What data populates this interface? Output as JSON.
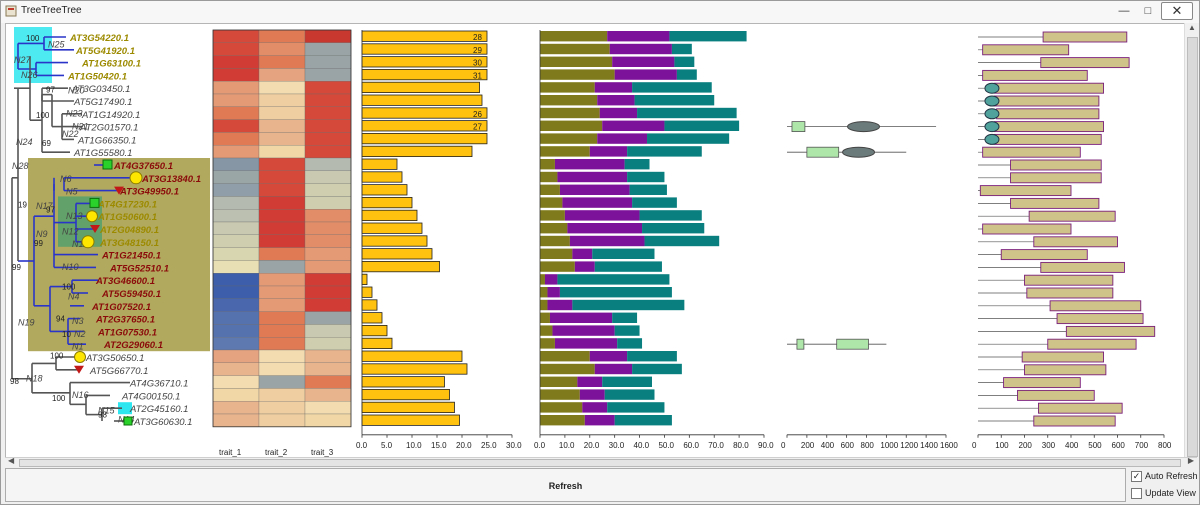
{
  "window": {
    "title": "TreeTreeTree",
    "minimize": "—",
    "maximize": "□",
    "close": "✕"
  },
  "colors": {
    "cyan": "#2ee6f0",
    "olive_clade": "#a8a04c",
    "green_clade": "#5aa06a",
    "blue_branch": "#2a34c8",
    "olive_label": "#9c8a00",
    "dark_red_label": "#8b0b0b",
    "grey_label": "#444444",
    "bar_gold": "#ffc20f",
    "stack_olive": "#7f7a1c",
    "stack_purple": "#7d129a",
    "stack_teal": "#0a7f80",
    "box_green": "#aee6a9",
    "box_teal_oval": "#4fa39c",
    "box_tan": "#cfc38a"
  },
  "tree": {
    "taxa": [
      {
        "name": "AT3G54220.1",
        "color": "olive"
      },
      {
        "name": "AT5G41920.1",
        "color": "olive"
      },
      {
        "name": "AT1G63100.1",
        "color": "olive"
      },
      {
        "name": "AT1G50420.1",
        "color": "olive"
      },
      {
        "name": "AT3G03450.1",
        "color": "grey"
      },
      {
        "name": "AT5G17490.1",
        "color": "grey"
      },
      {
        "name": "AT1G14920.1",
        "color": "grey"
      },
      {
        "name": "AT2G01570.1",
        "color": "grey"
      },
      {
        "name": "AT1G66350.1",
        "color": "grey"
      },
      {
        "name": "AT1G55580.1",
        "color": "grey"
      },
      {
        "name": "AT4G37650.1",
        "color": "darkred"
      },
      {
        "name": "AT3G13840.1",
        "color": "darkred"
      },
      {
        "name": "AT3G49950.1",
        "color": "darkred"
      },
      {
        "name": "AT4G17230.1",
        "color": "olive"
      },
      {
        "name": "AT1G50600.1",
        "color": "olive"
      },
      {
        "name": "AT2G04890.1",
        "color": "olive"
      },
      {
        "name": "AT3G48150.1",
        "color": "olive"
      },
      {
        "name": "AT1G21450.1",
        "color": "darkred"
      },
      {
        "name": "AT5G52510.1",
        "color": "darkred"
      },
      {
        "name": "AT3G46600.1",
        "color": "darkred"
      },
      {
        "name": "AT5G59450.1",
        "color": "darkred"
      },
      {
        "name": "AT1G07520.1",
        "color": "darkred"
      },
      {
        "name": "AT2G37650.1",
        "color": "darkred"
      },
      {
        "name": "AT1G07530.1",
        "color": "darkred"
      },
      {
        "name": "AT2G29060.1",
        "color": "darkred"
      },
      {
        "name": "AT3G50650.1",
        "color": "grey"
      },
      {
        "name": "AT5G66770.1",
        "color": "grey"
      },
      {
        "name": "AT4G36710.1",
        "color": "grey"
      },
      {
        "name": "AT4G00150.1",
        "color": "grey"
      },
      {
        "name": "AT2G45160.1",
        "color": "grey"
      },
      {
        "name": "AT3G60630.1",
        "color": "grey"
      }
    ],
    "nodes": [
      "N25",
      "N27",
      "N26",
      "N20",
      "N23",
      "N21",
      "N22",
      "N24",
      "N28",
      "N6",
      "N5",
      "N17",
      "N13",
      "N12",
      "N11",
      "N9",
      "N10",
      "N19",
      "N4",
      "N3",
      "N2",
      "N1",
      "N18",
      "N16",
      "N15",
      "N14"
    ],
    "bootstrap": [
      "100",
      "97",
      "100",
      "69",
      "19",
      "97",
      "99",
      "99",
      "100",
      "94",
      "10",
      "100",
      "98",
      "100",
      "98"
    ]
  },
  "heatmap": {
    "columns": [
      "trait_1",
      "trait_2",
      "trait_3"
    ],
    "rows": [
      [
        "#d5493a",
        "#e07a55",
        "#c8382f"
      ],
      [
        "#d5493a",
        "#e38d68",
        "#9aa3a6"
      ],
      [
        "#d13c34",
        "#e07a55",
        "#9aa3a6"
      ],
      [
        "#d13c34",
        "#e6a37f",
        "#9aa3a6"
      ],
      [
        "#e59a76",
        "#f2dcb0",
        "#d5493a"
      ],
      [
        "#e59a76",
        "#efcfa1",
        "#d5493a"
      ],
      [
        "#e07a55",
        "#efcfa1",
        "#d5493a"
      ],
      [
        "#d5493a",
        "#e8b48d",
        "#d5493a"
      ],
      [
        "#e07a55",
        "#e8b48d",
        "#d5493a"
      ],
      [
        "#e59a76",
        "#f1d6a6",
        "#d5493a"
      ],
      [
        "#8696a4",
        "#d5493a",
        "#b4bab0"
      ],
      [
        "#9aa5a6",
        "#d5493a",
        "#c8c9b0"
      ],
      [
        "#8f9ea8",
        "#d5493a",
        "#cfcfb0"
      ],
      [
        "#b4bab0",
        "#d13c34",
        "#cfcfb0"
      ],
      [
        "#bcc0b0",
        "#d13c34",
        "#e38d68"
      ],
      [
        "#c8c9b0",
        "#d13c34",
        "#e38d68"
      ],
      [
        "#cfcfb0",
        "#d13c34",
        "#e38d68"
      ],
      [
        "#d7d6b0",
        "#e07a55",
        "#e59a76"
      ],
      [
        "#e8dfb4",
        "#9aa3a6",
        "#e59a76"
      ],
      [
        "#3c5eab",
        "#e59a76",
        "#d13c34"
      ],
      [
        "#3c5eab",
        "#e59a76",
        "#d13c34"
      ],
      [
        "#4a66ad",
        "#e59a76",
        "#d13c34"
      ],
      [
        "#5571ae",
        "#e07a55",
        "#9aa3a6"
      ],
      [
        "#5571ae",
        "#e07a55",
        "#c8c9b0"
      ],
      [
        "#5e78b0",
        "#e07a55",
        "#cfcfb0"
      ],
      [
        "#e6a37f",
        "#f2dcb0",
        "#e8b48d"
      ],
      [
        "#e8b48d",
        "#f2dcb0",
        "#e8b48d"
      ],
      [
        "#f2dcb0",
        "#9aa3a6",
        "#e07a55"
      ],
      [
        "#f1d6a6",
        "#efcfa1",
        "#e8b48d"
      ],
      [
        "#e8b48d",
        "#efcfa1",
        "#f2dcb0"
      ],
      [
        "#e8b48d",
        "#efcfa1",
        "#f1d6a6"
      ]
    ]
  },
  "bar_panel": {
    "values": [
      25,
      25,
      25,
      25,
      23.5,
      24,
      25,
      25,
      25,
      22,
      7,
      8,
      9,
      10,
      11,
      12,
      13,
      14,
      15.5,
      1,
      2,
      3,
      4,
      5,
      6,
      20,
      21,
      16.5,
      17.5,
      18.5,
      19.5
    ],
    "labels": [
      "28",
      "29",
      "30",
      "31",
      "",
      "",
      "26",
      "27",
      "",
      "",
      "",
      "",
      "",
      "",
      "",
      "",
      "",
      "",
      "",
      "",
      "",
      "",
      "",
      "",
      "",
      "",
      "",
      "",
      "",
      "",
      ""
    ],
    "ticks": [
      "0.0",
      "5.0",
      "10.0",
      "15.0",
      "20.0",
      "25.0",
      "30.0"
    ],
    "xlim": [
      0,
      30
    ]
  },
  "stacked_panel": {
    "values": [
      [
        27,
        25,
        31
      ],
      [
        28,
        25,
        8
      ],
      [
        29,
        25,
        8
      ],
      [
        30,
        25,
        8
      ],
      [
        22,
        15,
        32
      ],
      [
        23,
        15,
        32
      ],
      [
        24,
        15,
        40
      ],
      [
        25,
        25,
        30
      ],
      [
        23,
        20,
        33
      ],
      [
        20,
        15,
        30
      ],
      [
        6,
        28,
        10
      ],
      [
        7,
        28,
        15
      ],
      [
        8,
        28,
        15
      ],
      [
        9,
        28,
        18
      ],
      [
        10,
        30,
        25
      ],
      [
        11,
        30,
        25
      ],
      [
        12,
        30,
        30
      ],
      [
        13,
        8,
        25
      ],
      [
        14,
        8,
        27
      ],
      [
        2,
        5,
        45
      ],
      [
        3,
        5,
        45
      ],
      [
        3,
        10,
        45
      ],
      [
        4,
        25,
        10
      ],
      [
        5,
        25,
        10
      ],
      [
        6,
        25,
        10
      ],
      [
        20,
        15,
        20
      ],
      [
        22,
        15,
        20
      ],
      [
        15,
        10,
        20
      ],
      [
        16,
        10,
        20
      ],
      [
        17,
        10,
        23
      ],
      [
        18,
        12,
        23
      ]
    ],
    "ticks": [
      "0.0",
      "10.0",
      "20.0",
      "30.0",
      "40.0",
      "50.0",
      "60.0",
      "70.0",
      "80.0",
      "90.0"
    ],
    "xlim": [
      0,
      90
    ]
  },
  "boxplot_panel": {
    "rows": [
      {
        "row": 7,
        "min": 0,
        "q1": 50,
        "q3": 180,
        "max": 1500,
        "oval": 770,
        "color": "green"
      },
      {
        "row": 9,
        "min": 0,
        "q1": 200,
        "q3": 520,
        "max": 1200,
        "oval": 720,
        "color": "green"
      },
      {
        "row": 24,
        "min": 0,
        "q1": 100,
        "q3": 170,
        "max": 1000,
        "q1b": 500,
        "q3b": 820,
        "color": "green"
      }
    ],
    "ticks": [
      "0",
      "200",
      "400",
      "600",
      "800",
      "1000",
      "1200",
      "1400",
      "1600"
    ],
    "xlim": [
      0,
      1600
    ]
  },
  "range_panel": {
    "rows": [
      [
        0,
        280,
        640
      ],
      [
        0,
        20,
        390
      ],
      [
        0,
        270,
        650
      ],
      [
        0,
        20,
        470
      ],
      [
        0,
        70,
        540
      ],
      [
        0,
        70,
        520
      ],
      [
        0,
        80,
        520
      ],
      [
        0,
        70,
        540
      ],
      [
        0,
        70,
        530
      ],
      [
        0,
        20,
        440
      ],
      [
        0,
        140,
        530
      ],
      [
        0,
        140,
        530
      ],
      [
        0,
        10,
        400
      ],
      [
        0,
        140,
        520
      ],
      [
        0,
        220,
        590
      ],
      [
        0,
        20,
        400
      ],
      [
        0,
        240,
        600
      ],
      [
        0,
        100,
        470
      ],
      [
        0,
        270,
        630
      ],
      [
        0,
        200,
        580
      ],
      [
        0,
        210,
        580
      ],
      [
        0,
        310,
        700
      ],
      [
        0,
        340,
        710
      ],
      [
        0,
        380,
        760
      ],
      [
        0,
        300,
        680
      ],
      [
        0,
        190,
        540
      ],
      [
        0,
        200,
        550
      ],
      [
        0,
        110,
        440
      ],
      [
        0,
        170,
        500
      ],
      [
        0,
        260,
        620
      ],
      [
        0,
        240,
        590
      ]
    ],
    "ovals": [
      4,
      5,
      6,
      7,
      8
    ],
    "ticks": [
      "0",
      "100",
      "200",
      "300",
      "400",
      "500",
      "600",
      "700",
      "800"
    ],
    "xlim": [
      0,
      800
    ]
  },
  "controls": {
    "refresh": "Refresh",
    "auto_refresh": "Auto Refresh",
    "auto_refresh_checked": true,
    "update_view": "Update View",
    "update_view_checked": false
  }
}
